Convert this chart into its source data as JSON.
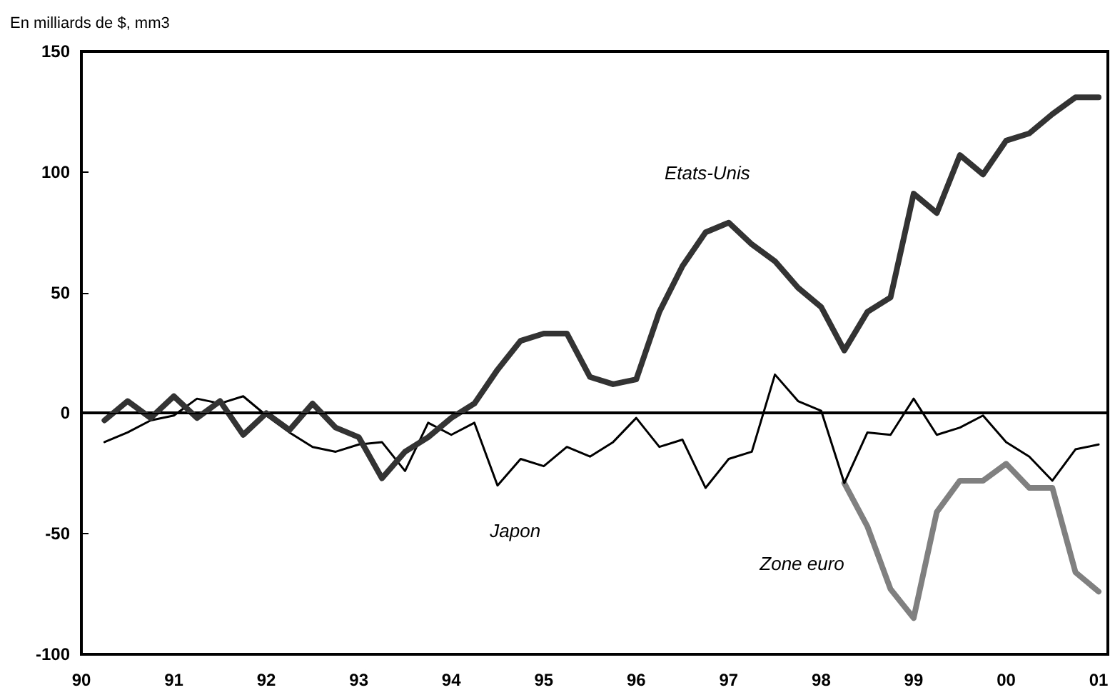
{
  "chart_data": {
    "type": "line",
    "ylabel": "En milliards de $, mm3",
    "xlim": [
      1990,
      2001.1
    ],
    "xticks": [
      {
        "value": 1990,
        "label": "90"
      },
      {
        "value": 1991,
        "label": "91"
      },
      {
        "value": 1992,
        "label": "92"
      },
      {
        "value": 1993,
        "label": "93"
      },
      {
        "value": 1994,
        "label": "94"
      },
      {
        "value": 1995,
        "label": "95"
      },
      {
        "value": 1996,
        "label": "96"
      },
      {
        "value": 1997,
        "label": "97"
      },
      {
        "value": 1998,
        "label": "98"
      },
      {
        "value": 1999,
        "label": "99"
      },
      {
        "value": 2000,
        "label": "00"
      },
      {
        "value": 2001,
        "label": "01"
      }
    ],
    "ylim": [
      -100,
      150
    ],
    "yticks": [
      -100,
      -50,
      0,
      50,
      100,
      150
    ],
    "grid": false,
    "legend": false,
    "marker": "none",
    "line_style": "solid",
    "ref_lines": [
      {
        "axis": "y",
        "value": 0,
        "label": null,
        "color": "#000000"
      }
    ],
    "series": [
      {
        "name": "Etats-Unis",
        "color": "#333333",
        "x": [
          1990.25,
          1990.5,
          1990.75,
          1991,
          1991.25,
          1991.5,
          1991.75,
          1992,
          1992.25,
          1992.5,
          1992.75,
          1993,
          1993.25,
          1993.5,
          1993.75,
          1994,
          1994.25,
          1994.5,
          1994.75,
          1995,
          1995.25,
          1995.5,
          1995.75,
          1996,
          1996.25,
          1996.5,
          1996.75,
          1997,
          1997.25,
          1997.5,
          1997.75,
          1998,
          1998.25,
          1998.5,
          1998.75,
          1999,
          1999.25,
          1999.5,
          1999.75,
          2000,
          2000.25,
          2000.5,
          2000.75,
          2001
        ],
        "values": [
          -3,
          5,
          -2,
          7,
          -2,
          5,
          -9,
          0,
          -7,
          4,
          -6,
          -10,
          -27,
          -16,
          -10,
          -2,
          4,
          18,
          30,
          33,
          33,
          15,
          12,
          14,
          42,
          61,
          75,
          79,
          70,
          63,
          52,
          44,
          26,
          42,
          48,
          91,
          83,
          107,
          99,
          113,
          116,
          124,
          131,
          131
        ]
      },
      {
        "name": "Japon",
        "color": "#000000",
        "x": [
          1990.25,
          1990.5,
          1990.75,
          1991,
          1991.25,
          1991.5,
          1991.75,
          1992,
          1992.25,
          1992.5,
          1992.75,
          1993,
          1993.25,
          1993.5,
          1993.75,
          1994,
          1994.25,
          1994.5,
          1994.75,
          1995,
          1995.25,
          1995.5,
          1995.75,
          1996,
          1996.25,
          1996.5,
          1996.75,
          1997,
          1997.25,
          1997.5,
          1997.75,
          1998,
          1998.25,
          1998.5,
          1998.75,
          1999,
          1999.25,
          1999.5,
          1999.75,
          2000,
          2000.25,
          2000.5,
          2000.75,
          2001
        ],
        "values": [
          -12,
          -8,
          -3,
          -1,
          6,
          4,
          7,
          -1,
          -8,
          -14,
          -16,
          -13,
          -12,
          -24,
          -4,
          -9,
          -4,
          -30,
          -19,
          -22,
          -14,
          -18,
          -12,
          -2,
          -14,
          -11,
          -31,
          -19,
          -16,
          16,
          5,
          1,
          -29,
          -8,
          -9,
          6,
          -9,
          -6,
          -1,
          -12,
          -18,
          -28,
          -15,
          -13
        ]
      },
      {
        "name": "Zone euro",
        "color": "#808080",
        "x": [
          1998.25,
          1998.5,
          1998.75,
          1999,
          1999.25,
          1999.5,
          1999.75,
          2000,
          2000.25,
          2000.5,
          2000.75,
          2001
        ],
        "values": [
          -29,
          -47,
          -73,
          -85,
          -41,
          -28,
          -28,
          -21,
          -31,
          -31,
          -66,
          -74
        ]
      }
    ]
  }
}
